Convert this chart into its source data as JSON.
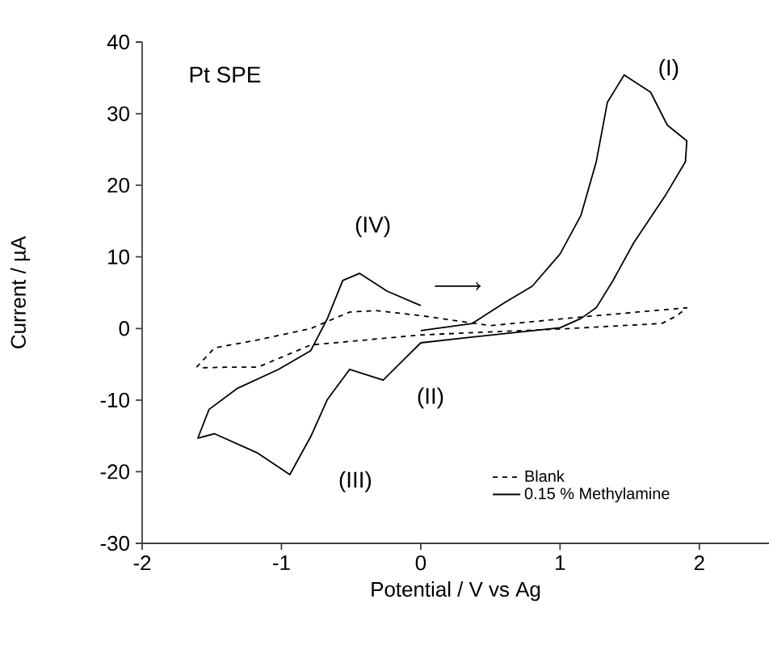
{
  "chart_data": {
    "type": "line",
    "xlabel": "Potential / V vs Ag",
    "ylabel": "Current / µA",
    "xlim": [
      -2,
      2.5
    ],
    "ylim": [
      -30,
      40
    ],
    "xticks": [
      -2,
      -1,
      0,
      1,
      2
    ],
    "yticks": [
      -30,
      -20,
      -10,
      0,
      10,
      20,
      30,
      40
    ],
    "grid": false,
    "legend": "bottom right",
    "marker": "none",
    "annotations": [
      "Pt SPE",
      "(I)",
      "(II)",
      "(III)",
      "(IV)"
    ],
    "series": [
      {
        "name": "Blank",
        "color": "#000000",
        "line_style": "dashed",
        "x": [
          -1.61,
          -1.48,
          -1.17,
          -0.79,
          -0.51,
          -0.32,
          0,
          0.5,
          1.15,
          1.91,
          1.84,
          1.73,
          1.07,
          0,
          -0.79,
          -1.17,
          -1.4,
          -1.59
        ],
        "values": [
          -5.4,
          -2.7,
          -1.6,
          0,
          2.3,
          2.5,
          1.8,
          0.4,
          1.6,
          2.9,
          1.8,
          0.7,
          0,
          -0.9,
          -2.3,
          -5.4,
          -5.4,
          -5.5
        ]
      },
      {
        "name": "0.15 % Methylamine",
        "color": "#000000",
        "line_style": "solid",
        "x": [
          0,
          0.37,
          0.6,
          0.8,
          1.0,
          1.15,
          1.26,
          1.34,
          1.46,
          1.65,
          1.77,
          1.91,
          1.9,
          1.76,
          1.53,
          1.38,
          1.26,
          1.15,
          1.0,
          0.37,
          0,
          -0.27,
          -0.51,
          -0.67,
          -0.79,
          -0.94,
          -1.17,
          -1.48,
          -1.6,
          -1.52,
          -1.32,
          -1.02,
          -0.79,
          -0.67,
          -0.56,
          -0.44,
          -0.24,
          0
        ],
        "values": [
          -0.3,
          0.7,
          3.6,
          5.9,
          10.4,
          15.8,
          23.3,
          31.6,
          35.4,
          33,
          28.4,
          26.2,
          23.3,
          18.7,
          12,
          6.7,
          2.9,
          1.4,
          0.1,
          -1.2,
          -2,
          -7.2,
          -5.7,
          -9.9,
          -15.1,
          -20.4,
          -17.4,
          -14.7,
          -15.3,
          -11.3,
          -8.4,
          -5.7,
          -3.1,
          1.4,
          6.7,
          7.7,
          5.2,
          3.2
        ]
      }
    ]
  }
}
